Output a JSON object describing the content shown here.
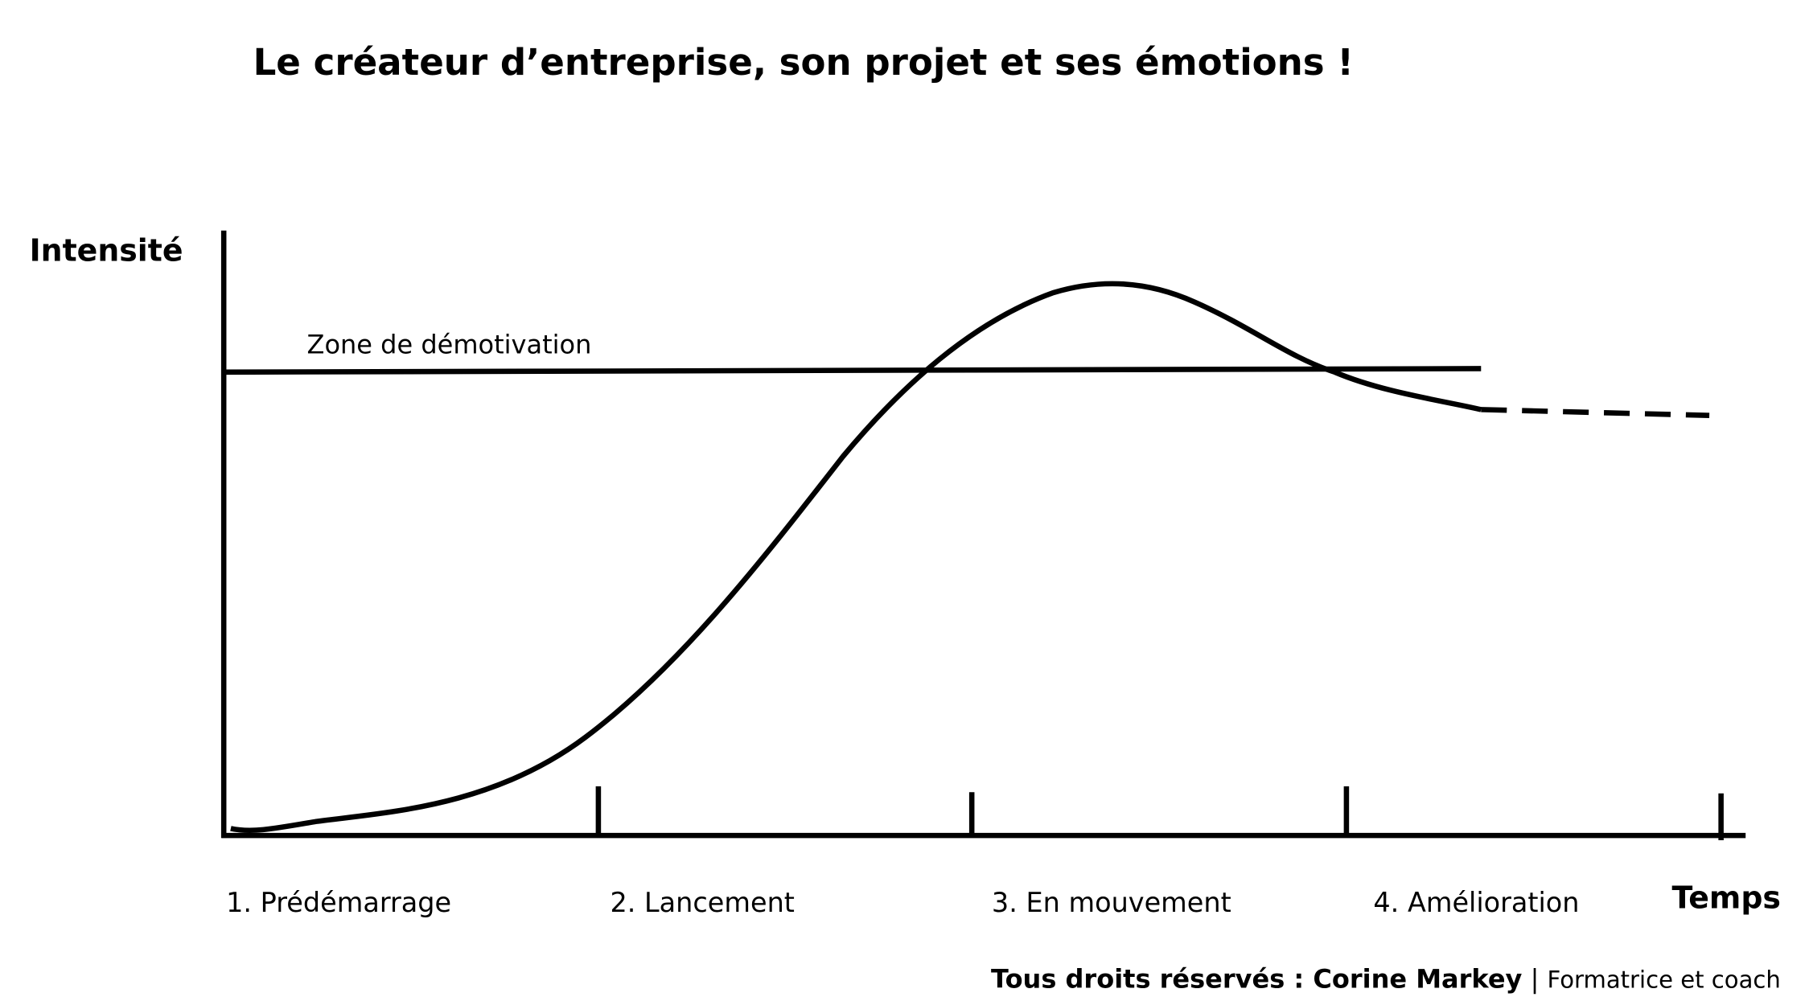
{
  "header": {
    "title": "Le créateur d’entreprise, son projet et ses émotions !"
  },
  "axes": {
    "y_label": "Intensité",
    "x_label": "Temps"
  },
  "zone_label": "Zone de démotivation",
  "phases": [
    "1. Prédémarrage",
    "2. Lancement",
    "3. En mouvement",
    "4. Amélioration"
  ],
  "footer": {
    "credit": "Tous droits réservés : Corine Markey",
    "separator": "|",
    "role": "Formatrice et coach"
  }
}
